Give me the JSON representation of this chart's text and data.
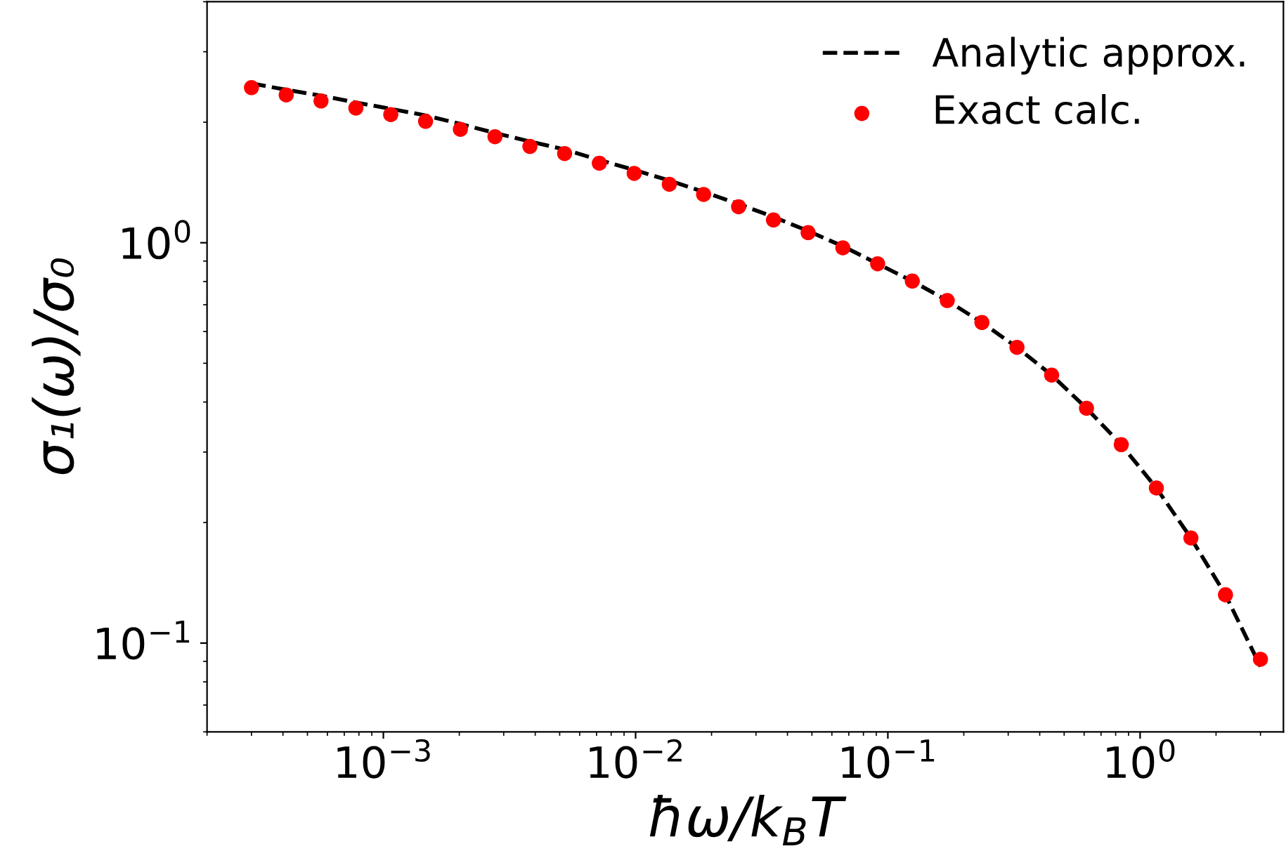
{
  "chart_data": {
    "type": "line",
    "xlabel": "ħω/k$_{B}$T",
    "ylabel": "σ₁(ω)/σ₀",
    "log": "xy",
    "legend": "top right",
    "grid": false,
    "xlim": [
      0.0002,
      3.7
    ],
    "ylim": [
      0.06,
      4.0
    ],
    "xticks": [
      {
        "value": 0.001,
        "label": "10$^{−3}$"
      },
      {
        "value": 0.01,
        "label": "10$^{−2}$"
      },
      {
        "value": 0.1,
        "label": "10$^{−1}$"
      },
      {
        "value": 1,
        "label": "10$^{0}$"
      }
    ],
    "yticks": [
      {
        "value": 0.1,
        "label": "10$^{−1}$"
      },
      {
        "value": 1,
        "label": "10$^{0}$"
      }
    ],
    "x": [
      0.0003,
      0.000412,
      0.000566,
      0.000778,
      0.00107,
      0.00147,
      0.00202,
      0.00277,
      0.00381,
      0.00523,
      0.00718,
      0.00987,
      0.0136,
      0.0186,
      0.0256,
      0.0352,
      0.0483,
      0.0663,
      0.0911,
      0.125,
      0.172,
      0.236,
      0.325,
      0.446,
      0.613,
      0.842,
      1.16,
      1.59,
      2.18,
      3.0
    ],
    "series": [
      {
        "name": "Analytic approx.",
        "color": "#000000",
        "line_style": "dashed",
        "marker": "none",
        "values": [
          2.5,
          2.41,
          2.33,
          2.24,
          2.16,
          2.08,
          1.98,
          1.88,
          1.79,
          1.71,
          1.61,
          1.52,
          1.43,
          1.34,
          1.25,
          1.16,
          1.07,
          0.98,
          0.886,
          0.802,
          0.717,
          0.632,
          0.548,
          0.467,
          0.386,
          0.313,
          0.244,
          0.183,
          0.132,
          0.0874
        ]
      },
      {
        "name": "Exact calc.",
        "type": "scatter",
        "color": "#ff0000",
        "marker": "circle",
        "values": [
          2.44,
          2.34,
          2.26,
          2.17,
          2.09,
          2.01,
          1.92,
          1.84,
          1.74,
          1.67,
          1.58,
          1.49,
          1.4,
          1.32,
          1.23,
          1.14,
          1.06,
          0.971,
          0.886,
          0.802,
          0.717,
          0.632,
          0.548,
          0.467,
          0.386,
          0.313,
          0.244,
          0.183,
          0.132,
          0.0911
        ]
      }
    ]
  }
}
